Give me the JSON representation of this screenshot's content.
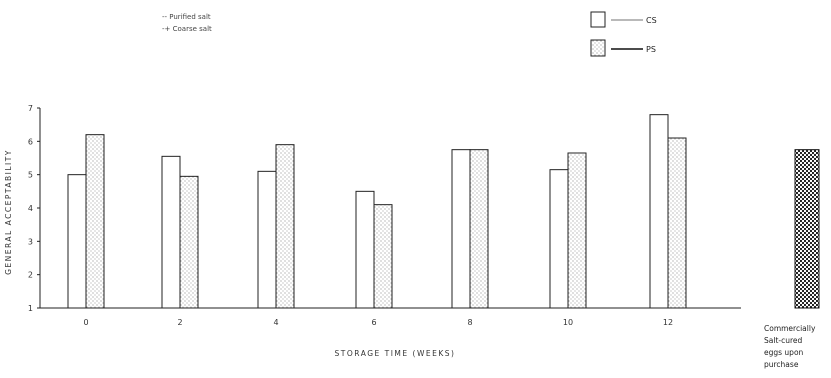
{
  "chart_data": {
    "type": "bar",
    "xlabel": "STORAGE TIME (WEEKS)",
    "ylabel": "GENERAL ACCEPTABILITY",
    "ylim": [
      1,
      7
    ],
    "yticks": [
      1,
      2,
      3,
      4,
      5,
      6,
      7
    ],
    "grid": false,
    "categories": [
      "0",
      "2",
      "4",
      "6",
      "8",
      "10",
      "12"
    ],
    "series": [
      {
        "name": "CS",
        "fill": "white",
        "values": [
          5.0,
          5.55,
          5.1,
          4.5,
          5.75,
          5.15,
          6.8
        ]
      },
      {
        "name": "PS",
        "fill": "dotted",
        "values": [
          6.2,
          4.95,
          5.9,
          4.1,
          5.75,
          5.65,
          6.1
        ]
      }
    ],
    "commercial": {
      "label_lines": [
        "Commercially",
        "Salt-cured",
        "eggs upon",
        "purchase"
      ],
      "value": 5.75,
      "fill": "crosshatch"
    },
    "legend_lines": [
      "-- Purified salt",
      "-+ Coarse salt"
    ],
    "legend_keys": [
      "CS",
      "PS"
    ],
    "legend_placement": "top"
  }
}
